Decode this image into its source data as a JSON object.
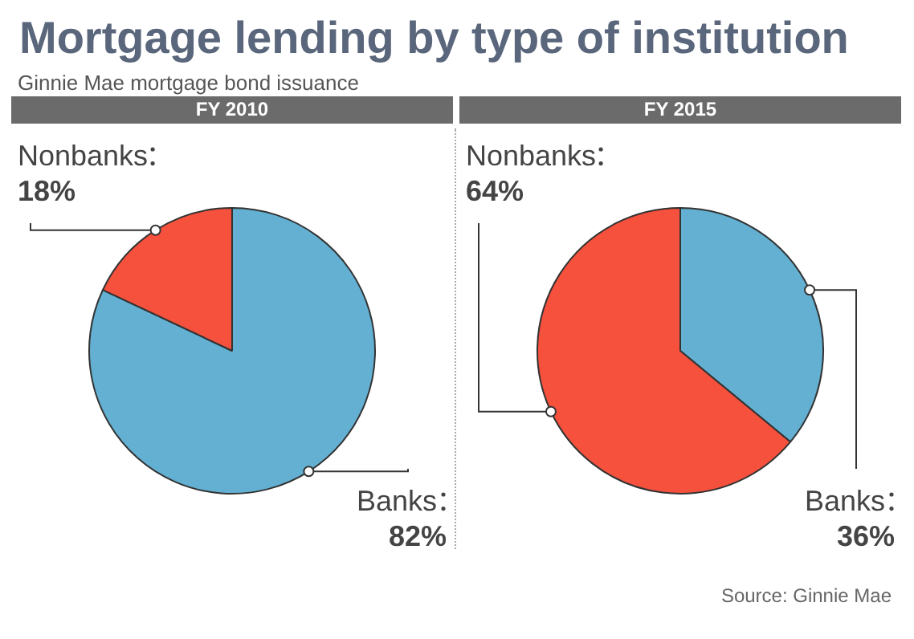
{
  "chart_data": [
    {
      "type": "pie",
      "title": "FY 2010",
      "annotations": [
        "Mortgage lending by type of institution",
        "Ginnie Mae mortgage bond issuance"
      ],
      "categories": [
        "Banks",
        "Nonbanks"
      ],
      "values": [
        82,
        18
      ],
      "colors": [
        "#63b0d2",
        "#f5513d"
      ],
      "value_labels": [
        "82%",
        "18%"
      ],
      "legend": false
    },
    {
      "type": "pie",
      "title": "FY 2015",
      "annotations": [
        "Source: Ginnie Mae"
      ],
      "categories": [
        "Banks",
        "Nonbanks"
      ],
      "values": [
        36,
        64
      ],
      "colors": [
        "#63b0d2",
        "#f5513d"
      ],
      "value_labels": [
        "36%",
        "64%"
      ],
      "legend": false
    }
  ]
}
